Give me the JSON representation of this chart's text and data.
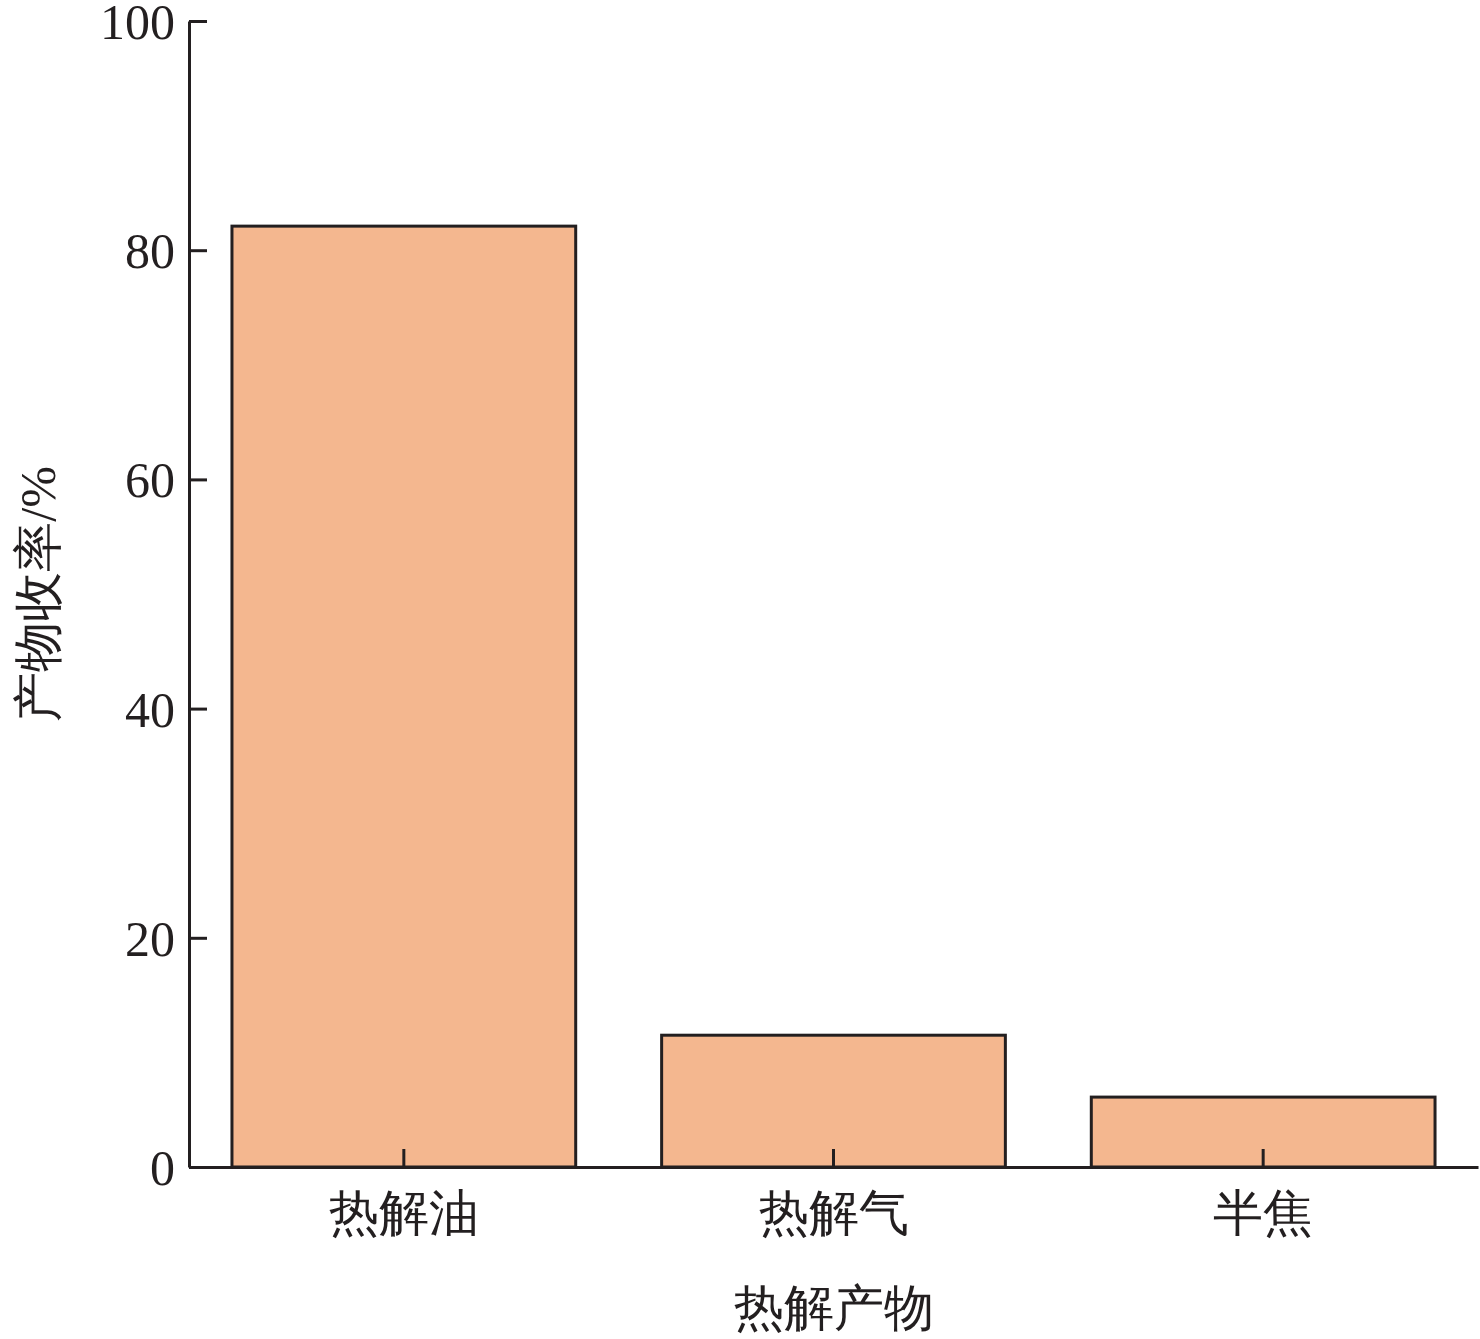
{
  "chart_data": {
    "type": "bar",
    "xlabel": "热解产物",
    "ylabel": "产物收率/%",
    "categories": [
      "热解油",
      "热解气",
      "半焦"
    ],
    "values": [
      82.1,
      11.5,
      6.1
    ],
    "color": "#f4b78f",
    "ylim": [
      0,
      100
    ],
    "yticks": [
      0,
      20,
      40,
      60,
      80,
      100
    ],
    "grid": false
  }
}
